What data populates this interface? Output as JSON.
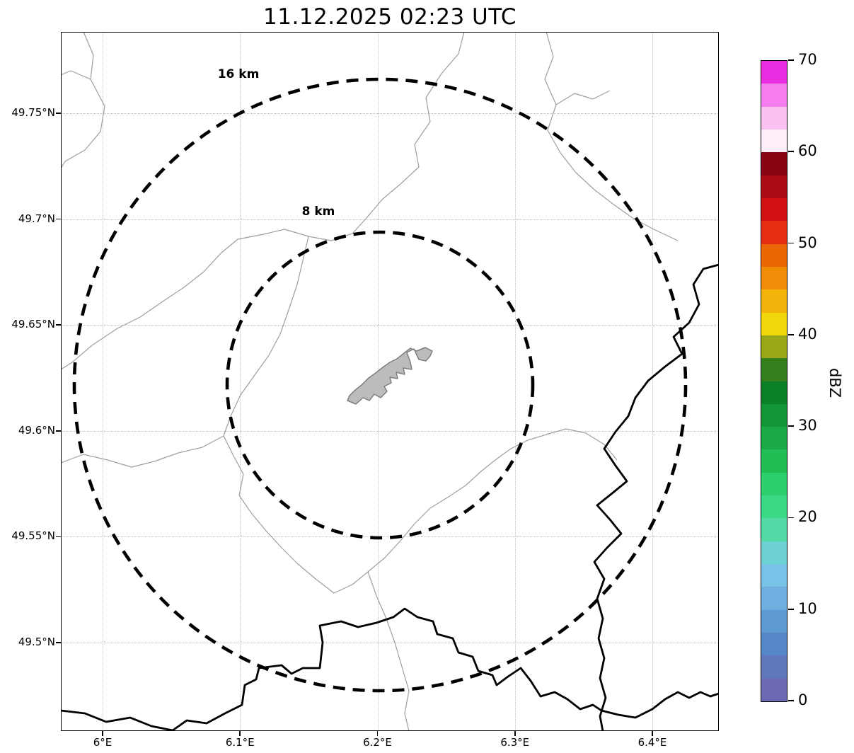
{
  "title": "11.12.2025 02:23 UTC",
  "plot": {
    "x_axis": {
      "tick_values": [
        6.0,
        6.1,
        6.2,
        6.3,
        6.4
      ],
      "tick_labels": [
        "6°E",
        "6.1°E",
        "6.2°E",
        "6.3°E",
        "6.4°E"
      ]
    },
    "y_axis": {
      "tick_values": [
        49.5,
        49.55,
        49.6,
        49.65,
        49.7,
        49.75
      ],
      "tick_labels": [
        "49.5°N",
        "49.55°N",
        "49.6°N",
        "49.65°N",
        "49.7°N",
        "49.75°N"
      ]
    },
    "range_rings": [
      {
        "label": "8 km",
        "radius_km": 8
      },
      {
        "label": "16 km",
        "radius_km": 16
      }
    ]
  },
  "colorbar": {
    "label": "dBZ",
    "min": 0,
    "max": 70,
    "tick_values": [
      0,
      10,
      20,
      30,
      40,
      50,
      60,
      70
    ],
    "tick_labels": [
      "0",
      "10",
      "20",
      "30",
      "40",
      "50",
      "60",
      "70"
    ],
    "colors_bottom_to_top": [
      "#6e6ab1",
      "#6078bb",
      "#5587c7",
      "#5f9ad4",
      "#6db0e0",
      "#79c3e8",
      "#6ed2d2",
      "#53d8a6",
      "#3bd985",
      "#2dd06c",
      "#23bd56",
      "#1aa946",
      "#129637",
      "#0c8029",
      "#337f1b",
      "#9aa716",
      "#f2d70c",
      "#f4b30a",
      "#f18c07",
      "#ed6605",
      "#e62e15",
      "#d11111",
      "#ab0b14",
      "#880613",
      "#fdeefa",
      "#f9c2f1",
      "#f67def",
      "#e92ee1"
    ]
  },
  "chart_data": {
    "type": "heatmap",
    "title": "11.12.2025 02:23 UTC",
    "description": "Weather radar reflectivity (dBZ) map with 8 km and 16 km range rings centered on the radar site; no precipitation echoes visible (clear map).",
    "x_ticks": [
      "6°E",
      "6.1°E",
      "6.2°E",
      "6.3°E",
      "6.4°E"
    ],
    "y_ticks": [
      "49.5°N",
      "49.55°N",
      "49.6°N",
      "49.65°N",
      "49.7°N",
      "49.75°N"
    ],
    "xlim": [
      5.97,
      6.448
    ],
    "ylim": [
      49.458,
      49.788
    ],
    "grid": true,
    "colorbar": {
      "label": "dBZ",
      "range": [
        0,
        70
      ],
      "ticks": [
        0,
        10,
        20,
        30,
        40,
        50,
        60,
        70
      ]
    },
    "range_rings_km": [
      8,
      16
    ],
    "ring_center": {
      "lon": 6.202,
      "lat": 49.622
    },
    "reflectivity_values": []
  }
}
